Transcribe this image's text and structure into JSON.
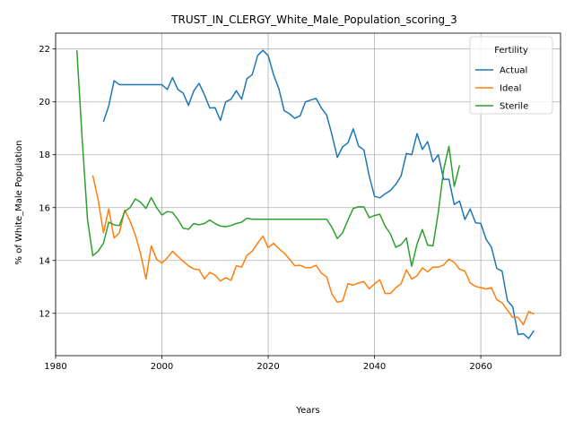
{
  "chart_data": {
    "type": "line",
    "title": "TRUST_IN_CLERGY_White_Male_Population_scoring_3",
    "xlabel": "Years",
    "ylabel": "% of White_Male Population",
    "xlim": [
      1980,
      2075
    ],
    "ylim": [
      10.4,
      22.6
    ],
    "xticks": [
      1980,
      2000,
      2020,
      2040,
      2060
    ],
    "yticks": [
      12,
      14,
      16,
      18,
      20,
      22
    ],
    "grid": true,
    "legend": {
      "title": "Fertility",
      "placement": "top-right"
    },
    "series": [
      {
        "name": "Actual",
        "color": "#1f77b4",
        "x": [
          1989,
          1990,
          1991,
          1992,
          1993,
          1994,
          1995,
          1996,
          1997,
          1998,
          1999,
          2000,
          2001,
          2002,
          2003,
          2004,
          2005,
          2006,
          2007,
          2008,
          2009,
          2010,
          2011,
          2012,
          2013,
          2014,
          2015,
          2016,
          2017,
          2018,
          2019,
          2020,
          2021,
          2022,
          2023,
          2024,
          2025,
          2026,
          2027,
          2028,
          2029,
          2030,
          2031,
          2032,
          2033,
          2034,
          2035,
          2036,
          2037,
          2038,
          2039,
          2040,
          2041,
          2042,
          2043,
          2044,
          2045,
          2046,
          2047,
          2048,
          2049,
          2050,
          2051,
          2052,
          2053,
          2054,
          2055,
          2056,
          2057,
          2058,
          2059,
          2060,
          2061,
          2062,
          2063,
          2064,
          2065,
          2066,
          2067,
          2068,
          2069,
          2070
        ],
        "values": [
          19.25,
          19.85,
          20.8,
          20.65,
          20.65,
          20.65,
          20.65,
          20.65,
          20.65,
          20.65,
          20.65,
          20.65,
          20.47,
          20.92,
          20.47,
          20.33,
          19.87,
          20.42,
          20.7,
          20.27,
          19.77,
          19.78,
          19.3,
          20.0,
          20.1,
          20.42,
          20.1,
          20.88,
          21.03,
          21.75,
          21.95,
          21.75,
          21.03,
          20.5,
          19.67,
          19.55,
          19.38,
          19.47,
          20.0,
          20.07,
          20.13,
          19.77,
          19.5,
          18.75,
          17.9,
          18.3,
          18.45,
          18.98,
          18.33,
          18.18,
          17.2,
          16.43,
          16.37,
          16.52,
          16.65,
          16.88,
          17.2,
          18.05,
          18.0,
          18.8,
          18.2,
          18.5,
          17.73,
          18.0,
          17.07,
          17.07,
          16.12,
          16.25,
          15.55,
          15.95,
          15.43,
          15.4,
          14.8,
          14.5,
          13.7,
          13.6,
          12.48,
          12.25,
          11.2,
          11.23,
          11.05,
          11.35
        ]
      },
      {
        "name": "Ideal",
        "color": "#ff7f0e",
        "x": [
          1987,
          1988,
          1989,
          1990,
          1991,
          1992,
          1993,
          1994,
          1995,
          1996,
          1997,
          1998,
          1999,
          2000,
          2001,
          2002,
          2003,
          2004,
          2005,
          2006,
          2007,
          2008,
          2009,
          2010,
          2011,
          2012,
          2013,
          2014,
          2015,
          2016,
          2017,
          2018,
          2019,
          2020,
          2021,
          2022,
          2023,
          2024,
          2025,
          2026,
          2027,
          2028,
          2029,
          2030,
          2031,
          2032,
          2033,
          2034,
          2035,
          2036,
          2037,
          2038,
          2039,
          2040,
          2041,
          2042,
          2043,
          2044,
          2045,
          2046,
          2047,
          2048,
          2049,
          2050,
          2051,
          2052,
          2053,
          2054,
          2055,
          2056,
          2057,
          2058,
          2059,
          2060,
          2061,
          2062,
          2063,
          2064,
          2065,
          2066,
          2067,
          2068,
          2069,
          2070
        ],
        "values": [
          17.22,
          16.3,
          15.05,
          15.95,
          14.85,
          15.05,
          15.9,
          15.5,
          14.97,
          14.25,
          13.3,
          14.55,
          14.05,
          13.9,
          14.1,
          14.35,
          14.15,
          13.97,
          13.8,
          13.68,
          13.65,
          13.3,
          13.55,
          13.45,
          13.22,
          13.35,
          13.25,
          13.8,
          13.75,
          14.2,
          14.35,
          14.65,
          14.92,
          14.48,
          14.65,
          14.45,
          14.28,
          14.05,
          13.8,
          13.82,
          13.73,
          13.73,
          13.82,
          13.52,
          13.38,
          12.72,
          12.42,
          12.47,
          13.12,
          13.07,
          13.15,
          13.2,
          12.93,
          13.12,
          13.27,
          12.75,
          12.75,
          12.97,
          13.12,
          13.65,
          13.3,
          13.42,
          13.72,
          13.57,
          13.75,
          13.75,
          13.83,
          14.05,
          13.93,
          13.67,
          13.6,
          13.15,
          13.02,
          12.97,
          12.92,
          12.97,
          12.52,
          12.4,
          12.12,
          11.85,
          11.85,
          11.57,
          12.07,
          11.97
        ]
      },
      {
        "name": "Sterile",
        "color": "#2ca02c",
        "x": [
          1984,
          1985,
          1986,
          1987,
          1988,
          1989,
          1990,
          1991,
          1992,
          1993,
          1994,
          1995,
          1996,
          1997,
          1998,
          1999,
          2000,
          2001,
          2002,
          2003,
          2004,
          2005,
          2006,
          2007,
          2008,
          2009,
          2010,
          2011,
          2012,
          2013,
          2014,
          2015,
          2016,
          2017,
          2018,
          2019,
          2020,
          2021,
          2022,
          2023,
          2024,
          2025,
          2026,
          2027,
          2028,
          2029,
          2030,
          2031,
          2032,
          2033,
          2034,
          2035,
          2036,
          2037,
          2038,
          2039,
          2040,
          2041,
          2042,
          2043,
          2044,
          2045,
          2046,
          2047,
          2048,
          2049,
          2050,
          2051,
          2052,
          2053,
          2054,
          2055,
          2056
        ],
        "values": [
          21.95,
          18.6,
          15.55,
          14.18,
          14.35,
          14.65,
          15.45,
          15.35,
          15.32,
          15.85,
          16.0,
          16.33,
          16.2,
          15.97,
          16.38,
          16.0,
          15.72,
          15.85,
          15.82,
          15.55,
          15.22,
          15.18,
          15.4,
          15.35,
          15.4,
          15.53,
          15.4,
          15.3,
          15.28,
          15.32,
          15.4,
          15.45,
          15.6,
          15.56,
          15.56,
          15.56,
          15.56,
          15.56,
          15.56,
          15.56,
          15.56,
          15.56,
          15.56,
          15.56,
          15.56,
          15.56,
          15.56,
          15.56,
          15.25,
          14.83,
          15.05,
          15.53,
          15.97,
          16.03,
          16.03,
          15.62,
          15.7,
          15.75,
          15.3,
          15.0,
          14.5,
          14.6,
          14.85,
          13.78,
          14.62,
          15.17,
          14.58,
          14.55,
          15.82,
          17.43,
          18.32,
          16.8,
          17.6
        ]
      }
    ]
  }
}
